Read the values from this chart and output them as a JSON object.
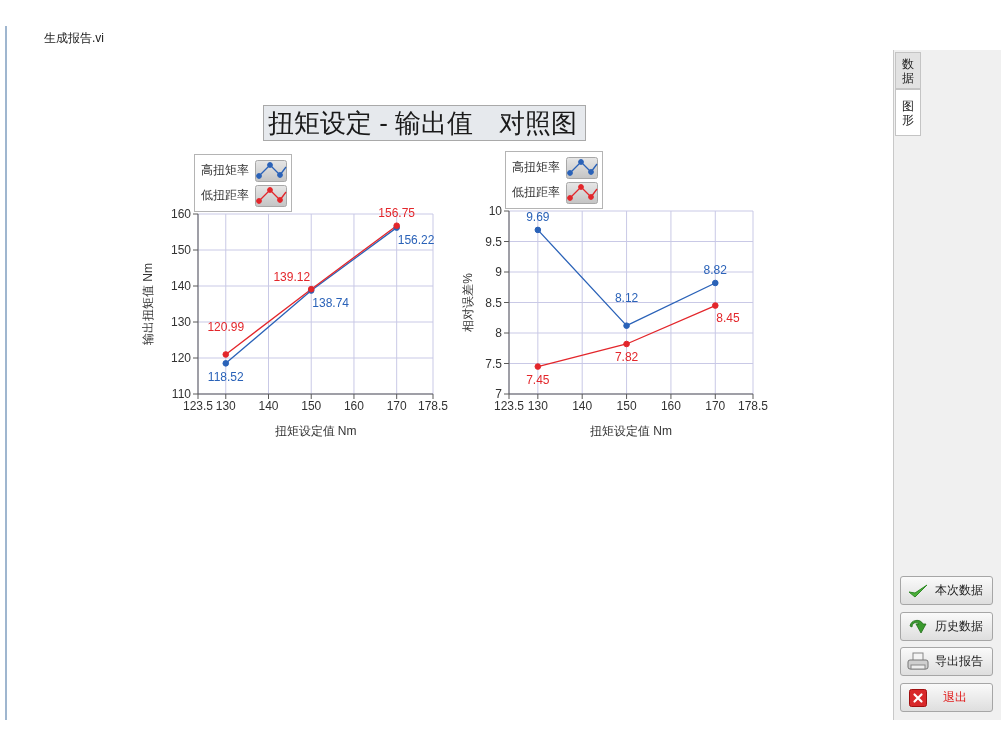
{
  "chart_data": [
    {
      "type": "other",
      "title": "扭矩设定 - 输出值　对照图",
      "annotations": [
        "生成报告.vi"
      ]
    },
    {
      "type": "line",
      "x": [
        130,
        150,
        170
      ],
      "series": [
        {
          "name": "高扭矩率",
          "color": "#2a62b8",
          "values": [
            118.52,
            138.74,
            156.22
          ]
        },
        {
          "name": "低扭距率",
          "color": "#e3262b",
          "values": [
            120.99,
            139.12,
            156.75
          ]
        }
      ],
      "xlabel": "扭矩设定值 Nm",
      "ylabel": "输出扭矩值 Nm",
      "xlim": [
        123.5,
        178.5
      ],
      "xticks": [
        123.5,
        130,
        140,
        150,
        160,
        170,
        178.5
      ],
      "ylim": [
        110,
        160
      ],
      "yticks": [
        110,
        120,
        130,
        140,
        150,
        160
      ],
      "grid": true,
      "legend": "top left",
      "marker": "circle",
      "line_style": "solid",
      "data_labels": true
    },
    {
      "type": "line",
      "x": [
        130,
        150,
        170
      ],
      "series": [
        {
          "name": "高扭矩率",
          "color": "#2a62b8",
          "values": [
            9.69,
            8.12,
            8.82
          ]
        },
        {
          "name": "低扭距率",
          "color": "#e3262b",
          "values": [
            7.45,
            7.82,
            8.45
          ]
        }
      ],
      "xlabel": "扭矩设定值 Nm",
      "ylabel": "相对误差%",
      "xlim": [
        123.5,
        178.5
      ],
      "xticks": [
        123.5,
        130,
        140,
        150,
        160,
        170,
        178.5
      ],
      "ylim": [
        7,
        10
      ],
      "yticks": [
        7,
        7.5,
        8,
        8.5,
        9,
        9.5,
        10
      ],
      "grid": true,
      "legend": "top left",
      "marker": "circle",
      "line_style": "solid",
      "data_labels": true
    },
    {
      "type": "other",
      "annotations": [
        "数据",
        "图形",
        "本次数据",
        "历史数据",
        "导出报告",
        "退出"
      ]
    }
  ]
}
